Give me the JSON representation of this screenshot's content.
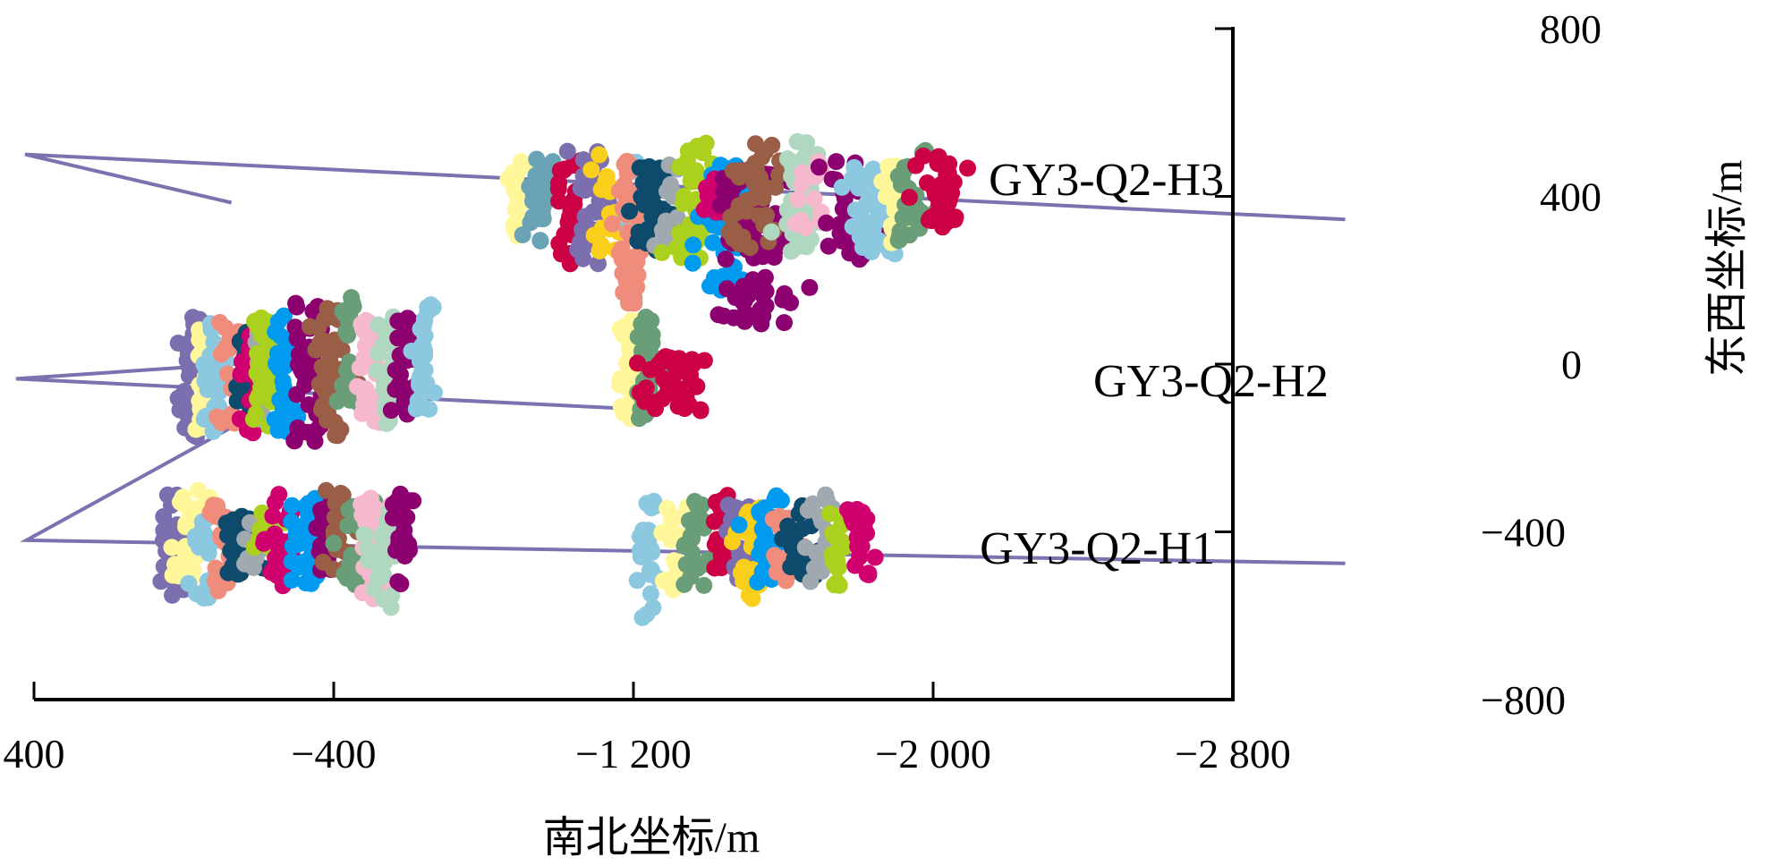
{
  "chart_data": {
    "type": "scatter",
    "title": "",
    "xlabel": "南北坐标/m",
    "ylabel": "东西坐标/m",
    "xlim": [
      400,
      -2800
    ],
    "ylim": [
      -800,
      800
    ],
    "x_ticks": [
      400,
      -400,
      -1200,
      -2000,
      -2800
    ],
    "x_tick_labels": [
      "400",
      "−400",
      "−1 200",
      "−2 000",
      "−2 800"
    ],
    "y_ticks": [
      800,
      400,
      0,
      -400,
      -800
    ],
    "y_tick_labels": [
      "800",
      "400",
      "0",
      "−400",
      "−800"
    ],
    "grid": false,
    "legend": "none",
    "well_color": "#7b72b0",
    "wells": [
      {
        "name": "GY3-Q2-H3",
        "path": [
          [
            -127,
            385
          ],
          [
            424,
            500
          ],
          [
            424,
            500
          ],
          [
            -3100,
            345
          ]
        ]
      },
      {
        "name": "GY3-Q2-H2",
        "path": [
          [
            -300,
            10
          ],
          [
            448,
            -35
          ],
          [
            448,
            -35
          ],
          [
            -1275,
            -110
          ]
        ]
      },
      {
        "name": "GY3-Q2-H1",
        "path": [
          [
            -210,
            -110
          ],
          [
            420,
            -420
          ],
          [
            420,
            -420
          ],
          [
            -3100,
            -475
          ]
        ]
      }
    ],
    "series": [
      {
        "well": "GY3-Q2-H3",
        "color": "#fff799",
        "x": -885,
        "y": 400,
        "sx": 14,
        "sy": 90,
        "n": 20
      },
      {
        "well": "GY3-Q2-H3",
        "color": "#6aa3b5",
        "x": -945,
        "y": 390,
        "sx": 20,
        "sy": 90,
        "n": 30
      },
      {
        "well": "GY3-Q2-H3",
        "color": "#cc0044",
        "x": -1030,
        "y": 360,
        "sx": 20,
        "sy": 120,
        "n": 28
      },
      {
        "well": "GY3-Q2-H3",
        "color": "#7b6fb0",
        "x": -1090,
        "y": 370,
        "sx": 25,
        "sy": 130,
        "n": 34
      },
      {
        "well": "GY3-Q2-H3",
        "color": "#f9cf1c",
        "x": -1130,
        "y": 380,
        "sx": 18,
        "sy": 110,
        "n": 20
      },
      {
        "well": "GY3-Q2-H3",
        "color": "#8cc8e0",
        "x": -1200,
        "y": 390,
        "sx": 18,
        "sy": 90,
        "n": 22
      },
      {
        "well": "GY3-Q2-H3",
        "color": "#f08c7c",
        "x": -1190,
        "y": 330,
        "sx": 18,
        "sy": 170,
        "n": 38
      },
      {
        "well": "GY3-Q2-H3",
        "color": "#0d4a6b",
        "x": -1255,
        "y": 370,
        "sx": 22,
        "sy": 95,
        "n": 48
      },
      {
        "well": "GY3-Q2-H3",
        "color": "#a0a8b0",
        "x": -1295,
        "y": 390,
        "sx": 22,
        "sy": 100,
        "n": 18
      },
      {
        "well": "GY3-Q2-H3",
        "color": "#acd01e",
        "x": -1360,
        "y": 390,
        "sx": 22,
        "sy": 130,
        "n": 42
      },
      {
        "well": "GY3-Q2-H3",
        "color": "#009aee",
        "x": -1440,
        "y": 330,
        "sx": 40,
        "sy": 140,
        "n": 50
      },
      {
        "well": "GY3-Q2-H3",
        "color": "#d0006f",
        "x": -1415,
        "y": 400,
        "sx": 20,
        "sy": 40,
        "n": 16
      },
      {
        "well": "GY3-Q2-H3",
        "color": "#8d0070",
        "x": -1520,
        "y": 280,
        "sx": 45,
        "sy": 170,
        "n": 70
      },
      {
        "well": "GY3-Q2-H3",
        "color": "#9a5e47",
        "x": -1525,
        "y": 400,
        "sx": 40,
        "sy": 120,
        "n": 40
      },
      {
        "well": "GY3-Q2-H3",
        "color": "#b0d8c0",
        "x": -1650,
        "y": 400,
        "sx": 25,
        "sy": 120,
        "n": 46
      },
      {
        "well": "GY3-Q2-H3",
        "color": "#f5b8cc",
        "x": -1680,
        "y": 400,
        "sx": 40,
        "sy": 80,
        "n": 12
      },
      {
        "well": "GY3-Q2-H3",
        "color": "#8d0070",
        "x": -1780,
        "y": 370,
        "sx": 40,
        "sy": 110,
        "n": 24
      },
      {
        "well": "GY3-Q2-H3",
        "color": "#8cc8e0",
        "x": -1830,
        "y": 370,
        "sx": 30,
        "sy": 100,
        "n": 40
      },
      {
        "well": "GY3-Q2-H3",
        "color": "#fff799",
        "x": -1900,
        "y": 380,
        "sx": 20,
        "sy": 100,
        "n": 20
      },
      {
        "well": "GY3-Q2-H3",
        "color": "#6a9e78",
        "x": -1935,
        "y": 400,
        "sx": 25,
        "sy": 100,
        "n": 26
      },
      {
        "well": "GY3-Q2-H3",
        "color": "#cc0044",
        "x": -2020,
        "y": 410,
        "sx": 35,
        "sy": 80,
        "n": 36
      },
      {
        "well": "GY3-Q2-H2",
        "color": "#7b6fb0",
        "x": -25,
        "y": -30,
        "sx": 15,
        "sy": 130,
        "n": 34
      },
      {
        "well": "GY3-Q2-H2",
        "color": "#fff799",
        "x": -60,
        "y": -40,
        "sx": 15,
        "sy": 120,
        "n": 24
      },
      {
        "well": "GY3-Q2-H2",
        "color": "#8cc8e0",
        "x": -90,
        "y": -30,
        "sx": 18,
        "sy": 120,
        "n": 38
      },
      {
        "well": "GY3-Q2-H2",
        "color": "#f08c7c",
        "x": -125,
        "y": -30,
        "sx": 15,
        "sy": 120,
        "n": 20
      },
      {
        "well": "GY3-Q2-H2",
        "color": "#0d4a6b",
        "x": -165,
        "y": -30,
        "sx": 15,
        "sy": 100,
        "n": 26
      },
      {
        "well": "GY3-Q2-H2",
        "color": "#d0006f",
        "x": -180,
        "y": -40,
        "sx": 18,
        "sy": 120,
        "n": 24
      },
      {
        "well": "GY3-Q2-H2",
        "color": "#a0a8b0",
        "x": -205,
        "y": -30,
        "sx": 10,
        "sy": 100,
        "n": 14
      },
      {
        "well": "GY3-Q2-H2",
        "color": "#acd01e",
        "x": -210,
        "y": -20,
        "sx": 18,
        "sy": 120,
        "n": 28
      },
      {
        "well": "GY3-Q2-H2",
        "color": "#009aee",
        "x": -275,
        "y": -20,
        "sx": 18,
        "sy": 130,
        "n": 36
      },
      {
        "well": "GY3-Q2-H2",
        "color": "#8d0070",
        "x": -325,
        "y": -20,
        "sx": 22,
        "sy": 150,
        "n": 40
      },
      {
        "well": "GY3-Q2-H2",
        "color": "#9a5e47",
        "x": -395,
        "y": -20,
        "sx": 25,
        "sy": 140,
        "n": 44
      },
      {
        "well": "GY3-Q2-H2",
        "color": "#6a9e78",
        "x": -440,
        "y": 30,
        "sx": 15,
        "sy": 120,
        "n": 24
      },
      {
        "well": "GY3-Q2-H2",
        "color": "#f5b8cc",
        "x": -500,
        "y": -20,
        "sx": 20,
        "sy": 120,
        "n": 34
      },
      {
        "well": "GY3-Q2-H2",
        "color": "#b0d8c0",
        "x": -545,
        "y": -20,
        "sx": 15,
        "sy": 130,
        "n": 28
      },
      {
        "well": "GY3-Q2-H2",
        "color": "#8d0070",
        "x": -590,
        "y": -10,
        "sx": 18,
        "sy": 110,
        "n": 30
      },
      {
        "well": "GY3-Q2-H2",
        "color": "#8cc8e0",
        "x": -640,
        "y": 10,
        "sx": 15,
        "sy": 120,
        "n": 30
      },
      {
        "well": "GY3-Q2-H2",
        "color": "#fff799",
        "x": -1190,
        "y": -10,
        "sx": 15,
        "sy": 110,
        "n": 36
      },
      {
        "well": "GY3-Q2-H2",
        "color": "#6a9e78",
        "x": -1235,
        "y": -10,
        "sx": 15,
        "sy": 120,
        "n": 34
      },
      {
        "well": "GY3-Q2-H2",
        "color": "#cc0044",
        "x": -1310,
        "y": -45,
        "sx": 45,
        "sy": 60,
        "n": 46
      },
      {
        "well": "GY3-Q2-H1",
        "color": "#7b6fb0",
        "x": 30,
        "y": -420,
        "sx": 15,
        "sy": 120,
        "n": 24
      },
      {
        "well": "GY3-Q2-H1",
        "color": "#fff799",
        "x": -15,
        "y": -420,
        "sx": 18,
        "sy": 110,
        "n": 26
      },
      {
        "well": "GY3-Q2-H1",
        "color": "#8cc8e0",
        "x": -45,
        "y": -460,
        "sx": 18,
        "sy": 90,
        "n": 24
      },
      {
        "well": "GY3-Q2-H1",
        "color": "#f08c7c",
        "x": -95,
        "y": -440,
        "sx": 15,
        "sy": 100,
        "n": 22
      },
      {
        "well": "GY3-Q2-H1",
        "color": "#0d4a6b",
        "x": -150,
        "y": -440,
        "sx": 30,
        "sy": 70,
        "n": 30
      },
      {
        "well": "GY3-Q2-H1",
        "color": "#a0a8b0",
        "x": -185,
        "y": -420,
        "sx": 15,
        "sy": 60,
        "n": 10
      },
      {
        "well": "GY3-Q2-H1",
        "color": "#acd01e",
        "x": -225,
        "y": -400,
        "sx": 15,
        "sy": 50,
        "n": 14
      },
      {
        "well": "GY3-Q2-H1",
        "color": "#d0006f",
        "x": -260,
        "y": -420,
        "sx": 18,
        "sy": 100,
        "n": 30
      },
      {
        "well": "GY3-Q2-H1",
        "color": "#009aee",
        "x": -330,
        "y": -420,
        "sx": 25,
        "sy": 100,
        "n": 36
      },
      {
        "well": "GY3-Q2-H1",
        "color": "#8d0070",
        "x": -380,
        "y": -410,
        "sx": 15,
        "sy": 90,
        "n": 18
      },
      {
        "well": "GY3-Q2-H1",
        "color": "#9a5e47",
        "x": -420,
        "y": -400,
        "sx": 20,
        "sy": 90,
        "n": 30
      },
      {
        "well": "GY3-Q2-H1",
        "color": "#6a9e78",
        "x": -465,
        "y": -430,
        "sx": 20,
        "sy": 100,
        "n": 28
      },
      {
        "well": "GY3-Q2-H1",
        "color": "#f5b8cc",
        "x": -500,
        "y": -440,
        "sx": 20,
        "sy": 110,
        "n": 30
      },
      {
        "well": "GY3-Q2-H1",
        "color": "#b0d8c0",
        "x": -530,
        "y": -460,
        "sx": 18,
        "sy": 110,
        "n": 22
      },
      {
        "well": "GY3-Q2-H1",
        "color": "#8d0070",
        "x": -585,
        "y": -420,
        "sx": 15,
        "sy": 100,
        "n": 22
      },
      {
        "well": "GY3-Q2-H1",
        "color": "#8cc8e0",
        "x": -1235,
        "y": -470,
        "sx": 15,
        "sy": 130,
        "n": 28
      },
      {
        "well": "GY3-Q2-H1",
        "color": "#fff799",
        "x": -1305,
        "y": -440,
        "sx": 15,
        "sy": 90,
        "n": 20
      },
      {
        "well": "GY3-Q2-H1",
        "color": "#6a9e78",
        "x": -1360,
        "y": -430,
        "sx": 15,
        "sy": 100,
        "n": 26
      },
      {
        "well": "GY3-Q2-H1",
        "color": "#cc0044",
        "x": -1430,
        "y": -400,
        "sx": 15,
        "sy": 80,
        "n": 24
      },
      {
        "well": "GY3-Q2-H1",
        "color": "#7b6fb0",
        "x": -1475,
        "y": -420,
        "sx": 15,
        "sy": 90,
        "n": 20
      },
      {
        "well": "GY3-Q2-H1",
        "color": "#f9cf1c",
        "x": -1510,
        "y": -450,
        "sx": 18,
        "sy": 100,
        "n": 30
      },
      {
        "well": "GY3-Q2-H1",
        "color": "#009aee",
        "x": -1550,
        "y": -420,
        "sx": 20,
        "sy": 100,
        "n": 28
      },
      {
        "well": "GY3-Q2-H1",
        "color": "#f08c7c",
        "x": -1610,
        "y": -440,
        "sx": 18,
        "sy": 70,
        "n": 22
      },
      {
        "well": "GY3-Q2-H1",
        "color": "#0d4a6b",
        "x": -1650,
        "y": -420,
        "sx": 20,
        "sy": 80,
        "n": 22
      },
      {
        "well": "GY3-Q2-H1",
        "color": "#a0a8b0",
        "x": -1700,
        "y": -420,
        "sx": 20,
        "sy": 100,
        "n": 16
      },
      {
        "well": "GY3-Q2-H1",
        "color": "#acd01e",
        "x": -1745,
        "y": -430,
        "sx": 15,
        "sy": 90,
        "n": 20
      },
      {
        "well": "GY3-Q2-H1",
        "color": "#d0006f",
        "x": -1800,
        "y": -430,
        "sx": 15,
        "sy": 90,
        "n": 24
      }
    ]
  }
}
